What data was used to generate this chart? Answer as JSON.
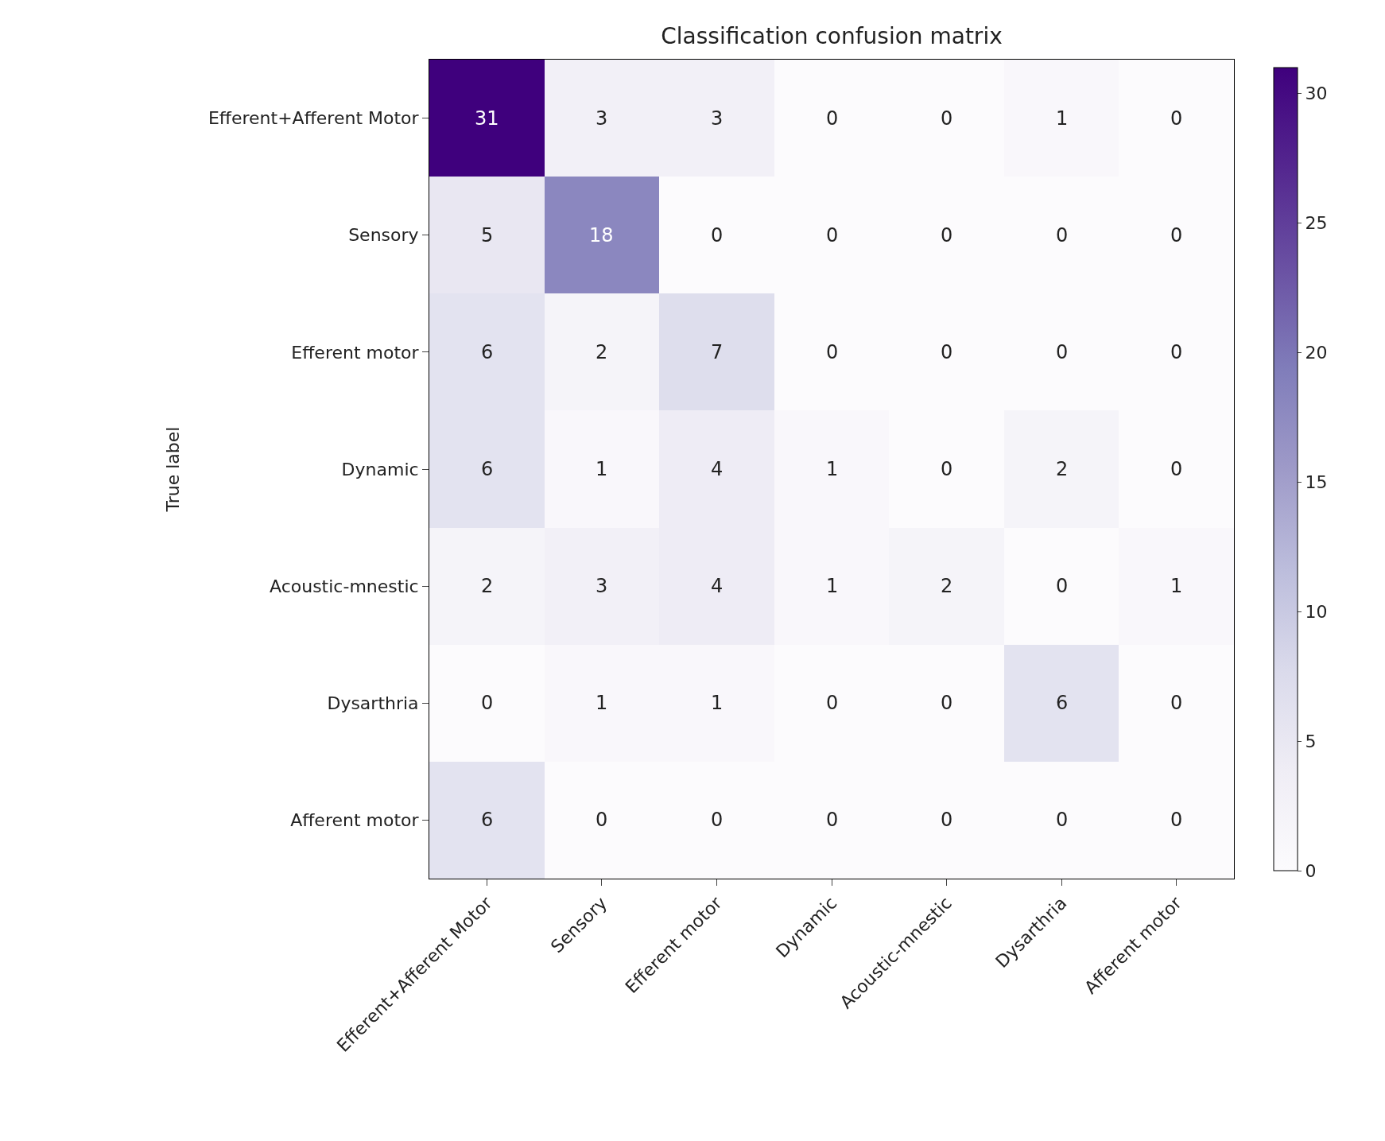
{
  "chart_data": {
    "type": "heatmap",
    "title": "Classification confusion matrix",
    "ylabel": "True label",
    "categories": [
      "Efferent+Afferent Motor",
      "Sensory",
      "Efferent motor",
      "Dynamic",
      "Acoustic-mnestic",
      "Dysarthria",
      "Afferent motor"
    ],
    "y_categories": [
      "Efferent+Afferent Motor",
      "Sensory",
      "Efferent motor",
      "Dynamic",
      "Acoustic-mnestic",
      "Dysarthria",
      "Afferent motor"
    ],
    "cells": [
      [
        31,
        3,
        3,
        0,
        0,
        1,
        0
      ],
      [
        5,
        18,
        0,
        0,
        0,
        0,
        0
      ],
      [
        6,
        2,
        7,
        0,
        0,
        0,
        0
      ],
      [
        6,
        1,
        4,
        1,
        0,
        2,
        0
      ],
      [
        2,
        3,
        4,
        1,
        2,
        0,
        1
      ],
      [
        0,
        1,
        1,
        0,
        0,
        6,
        0
      ],
      [
        6,
        0,
        0,
        0,
        0,
        0,
        0
      ]
    ],
    "clim": [
      0,
      31
    ],
    "cticks": [
      0,
      5,
      10,
      15,
      20,
      25,
      30
    ],
    "data_labels": true
  }
}
